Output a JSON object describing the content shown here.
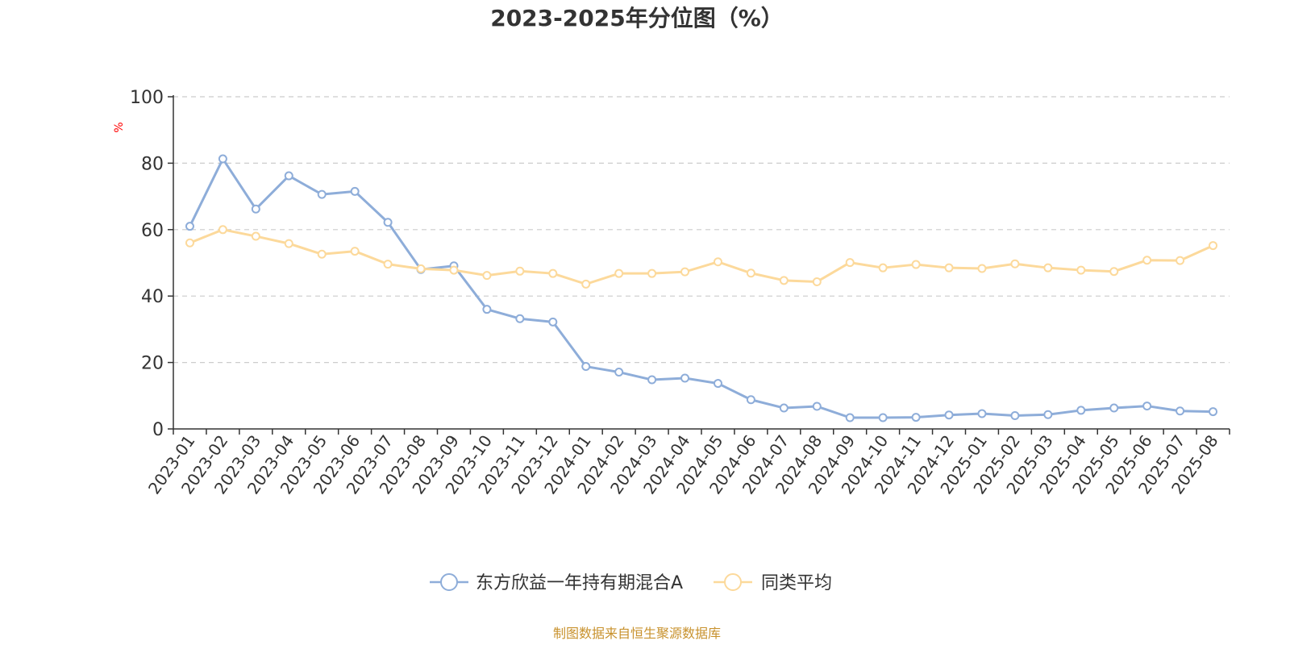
{
  "chart_data": {
    "type": "line",
    "title": "2023-2025年分位图（%）",
    "ylabel": "%",
    "ylim": [
      0,
      100
    ],
    "yticks": [
      0,
      20,
      40,
      60,
      80,
      100
    ],
    "grid": true,
    "legend_position": "bottom",
    "categories": [
      "2023-01",
      "2023-02",
      "2023-03",
      "2023-04",
      "2023-05",
      "2023-06",
      "2023-07",
      "2023-08",
      "2023-09",
      "2023-10",
      "2023-11",
      "2023-12",
      "2024-01",
      "2024-02",
      "2024-03",
      "2024-04",
      "2024-05",
      "2024-06",
      "2024-07",
      "2024-08",
      "2024-09",
      "2024-10",
      "2024-11",
      "2024-12",
      "2025-01",
      "2025-02",
      "2025-03",
      "2025-04",
      "2025-05",
      "2025-06",
      "2025-07",
      "2025-08"
    ],
    "series": [
      {
        "name": "东方欣益一年持有期混合A",
        "color": "#8eadd9",
        "values": [
          61,
          81.3,
          66.2,
          76.2,
          70.6,
          71.5,
          62.2,
          48,
          49.1,
          36,
          33.2,
          32.2,
          18.8,
          17.1,
          14.8,
          15.3,
          13.7,
          8.8,
          6.3,
          6.8,
          3.4,
          3.4,
          3.5,
          4.2,
          4.6,
          4,
          4.3,
          5.6,
          6.3,
          6.9,
          5.4,
          5.2
        ]
      },
      {
        "name": "同类平均",
        "color": "#fcd99b",
        "values": [
          56,
          60,
          58,
          55.8,
          52.6,
          53.5,
          49.6,
          48.2,
          47.8,
          46.2,
          47.5,
          46.8,
          43.6,
          46.8,
          46.8,
          47.3,
          50.3,
          46.9,
          44.7,
          44.3,
          50.1,
          48.5,
          49.5,
          48.5,
          48.3,
          49.7,
          48.5,
          47.8,
          47.4,
          50.8,
          50.7,
          55.2
        ]
      }
    ]
  },
  "source_note": "制图数据来自恒生聚源数据库"
}
